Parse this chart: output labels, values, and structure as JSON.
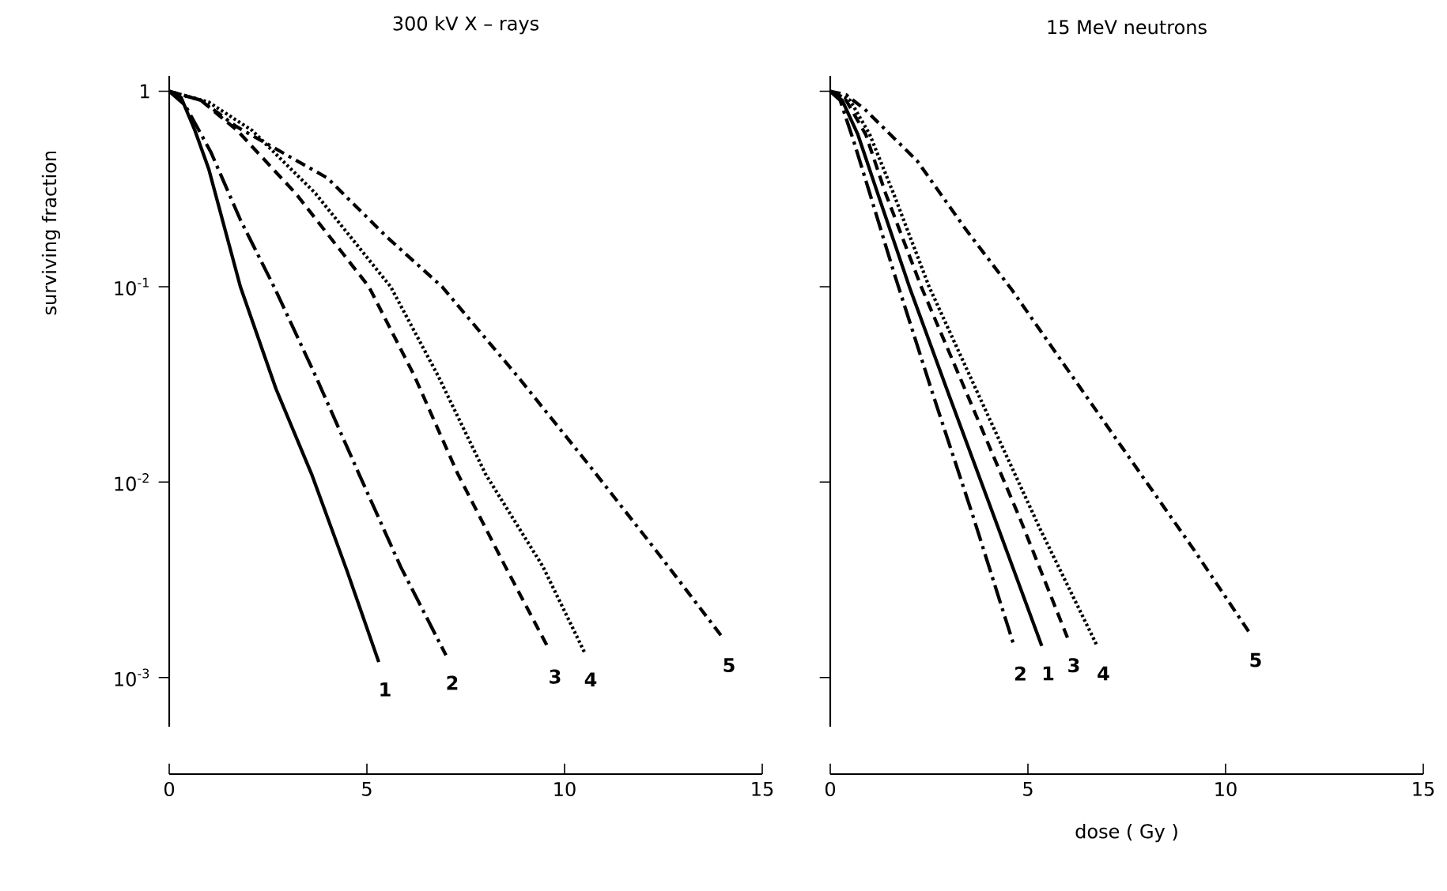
{
  "chart_data": [
    {
      "type": "line",
      "title": "300 kV X – rays",
      "ylabel": "surviving fraction",
      "log": "y",
      "xlim": [
        0,
        15
      ],
      "ylim": [
        0.00056,
        1.2
      ],
      "xticks": [
        0,
        5,
        10,
        15
      ],
      "yticks": [
        1,
        {
          "value": 0.1,
          "label": "10$^{-1}$"
        },
        {
          "value": 0.01,
          "label": "10$^{-2}$"
        },
        {
          "value": 0.001,
          "label": "10$^{-3}$"
        }
      ],
      "series": [
        {
          "name": "1",
          "color": "#000000",
          "line_style": "solid",
          "x": [
            0,
            0.3,
            0.65,
            1.0,
            1.8,
            2.7,
            3.6,
            4.5,
            5.3
          ],
          "values": [
            1,
            0.93,
            0.63,
            0.4,
            0.1,
            0.03,
            0.011,
            0.0035,
            0.0012
          ]
        },
        {
          "name": "2",
          "color": "#000000",
          "line_style": "longdashdot",
          "x": [
            0,
            0.4,
            1.05,
            1.8,
            2.65,
            3.7,
            4.8,
            5.85,
            7.0
          ],
          "values": [
            1,
            0.85,
            0.49,
            0.22,
            0.1,
            0.035,
            0.011,
            0.0037,
            0.0013
          ]
        },
        {
          "name": "3",
          "color": "#000000",
          "line_style": "dashed",
          "x": [
            0,
            0.8,
            1.72,
            3.2,
            5.05,
            6.2,
            7.3,
            8.5,
            9.6
          ],
          "values": [
            1,
            0.9,
            0.63,
            0.3,
            0.1,
            0.035,
            0.011,
            0.0037,
            0.0014
          ]
        },
        {
          "name": "4",
          "color": "#000000",
          "line_style": "dotted",
          "x": [
            0,
            1.0,
            2.1,
            3.7,
            5.6,
            6.8,
            8.0,
            9.45,
            10.5
          ],
          "values": [
            1,
            0.88,
            0.63,
            0.3,
            0.1,
            0.035,
            0.011,
            0.0037,
            0.00135
          ]
        },
        {
          "name": "5",
          "color": "#000000",
          "line_style": "dashdot",
          "x": [
            0,
            0.8,
            1.7,
            4.0,
            5.5,
            6.9,
            8.8,
            10.65,
            12.3,
            14.0
          ],
          "values": [
            1,
            0.9,
            0.66,
            0.36,
            0.18,
            0.1,
            0.035,
            0.012,
            0.0045,
            0.0016
          ]
        }
      ]
    },
    {
      "type": "line",
      "title": "15 MeV neutrons",
      "xlabel": "dose ( Gy )",
      "log": "y",
      "tick_labels": "x",
      "xlim": [
        0,
        15
      ],
      "ylim": [
        0.00056,
        1.2
      ],
      "xticks": [
        0,
        5,
        10,
        15
      ],
      "yticks": [
        {
          "value": 1,
          "label": null
        },
        {
          "value": 0.1,
          "label": null
        },
        {
          "value": 0.01,
          "label": null
        },
        {
          "value": 0.001,
          "label": null
        }
      ],
      "series": [
        {
          "name": "1",
          "color": "#000000",
          "line_style": "solid",
          "x": [
            0,
            0.3,
            0.7,
            1.2,
            2.0,
            3.0,
            4.2,
            5.35
          ],
          "values": [
            1,
            0.9,
            0.6,
            0.3,
            0.1,
            0.028,
            0.0062,
            0.00145
          ]
        },
        {
          "name": "2",
          "color": "#000000",
          "line_style": "longdashdot",
          "x": [
            0,
            0.25,
            0.6,
            1.0,
            1.6,
            2.6,
            3.6,
            4.65
          ],
          "values": [
            1,
            0.9,
            0.55,
            0.3,
            0.12,
            0.028,
            0.0068,
            0.00145
          ]
        },
        {
          "name": "3",
          "color": "#000000",
          "line_style": "dashed",
          "x": [
            0,
            0.4,
            0.9,
            1.4,
            2.3,
            3.5,
            4.8,
            6.0
          ],
          "values": [
            1,
            0.9,
            0.6,
            0.3,
            0.1,
            0.027,
            0.0065,
            0.0016
          ]
        },
        {
          "name": "4",
          "color": "#000000",
          "line_style": "dotted",
          "x": [
            0,
            0.5,
            1.0,
            1.6,
            2.5,
            3.9,
            5.3,
            6.75
          ],
          "values": [
            1,
            0.9,
            0.6,
            0.3,
            0.1,
            0.024,
            0.0058,
            0.00145
          ]
        },
        {
          "name": "5",
          "color": "#000000",
          "line_style": "dashdot",
          "x": [
            0,
            0.4,
            0.87,
            2.2,
            3.4,
            4.6,
            6.2,
            7.8,
            9.2,
            10.6
          ],
          "values": [
            1,
            0.96,
            0.81,
            0.44,
            0.2,
            0.096,
            0.033,
            0.0114,
            0.0045,
            0.0017
          ]
        }
      ]
    }
  ]
}
